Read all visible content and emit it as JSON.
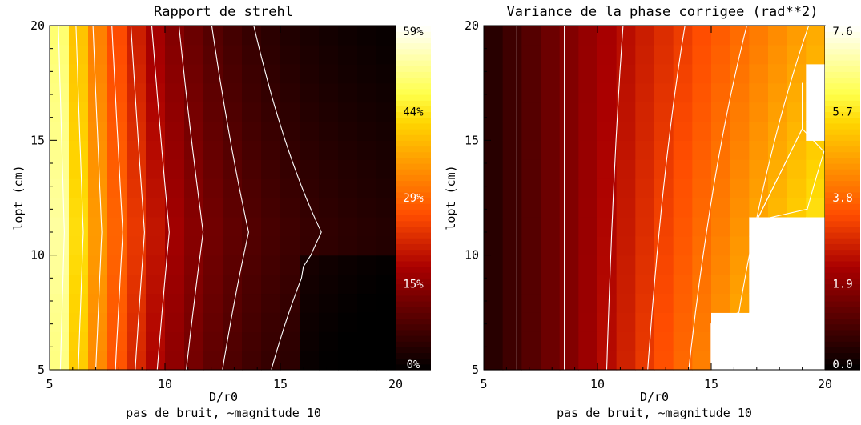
{
  "figure": {
    "bottom_note": "pas de bruit, ~magnitude 10",
    "colors": {
      "background": "#ffffff",
      "axis": "#000000",
      "contour": "#ffffff"
    }
  },
  "chart_data": [
    {
      "type": "heatmap",
      "title": "Rapport de strehl",
      "xlabel": "D/r0",
      "ylabel": "lopt (cm)",
      "xlim": [
        5,
        20
      ],
      "ylim": [
        5,
        20
      ],
      "xticks": [
        "5",
        "10",
        "15",
        "20"
      ],
      "yticks": [
        "5",
        "10",
        "15",
        "20"
      ],
      "colorbar_labels": [
        "0%",
        "15%",
        "29%",
        "44%",
        "59%"
      ],
      "colorbar_range": [
        0,
        59
      ],
      "colormap": "hot",
      "grid_shape": [
        18,
        18
      ],
      "contours": true
    },
    {
      "type": "heatmap",
      "title": "Variance de la phase corrigee (rad**2)",
      "xlabel": "D/r0",
      "ylabel": "lopt (cm)",
      "xlim": [
        5,
        20
      ],
      "ylim": [
        5,
        20
      ],
      "xticks": [
        "5",
        "10",
        "15",
        "20"
      ],
      "yticks": [
        "5",
        "10",
        "15",
        "20"
      ],
      "colorbar_labels": [
        "0.0",
        "1.9",
        "3.8",
        "5.7",
        "7.6"
      ],
      "colorbar_range": [
        0,
        7.6
      ],
      "colormap": "hot",
      "grid_shape": [
        18,
        18
      ],
      "contours": true
    }
  ]
}
